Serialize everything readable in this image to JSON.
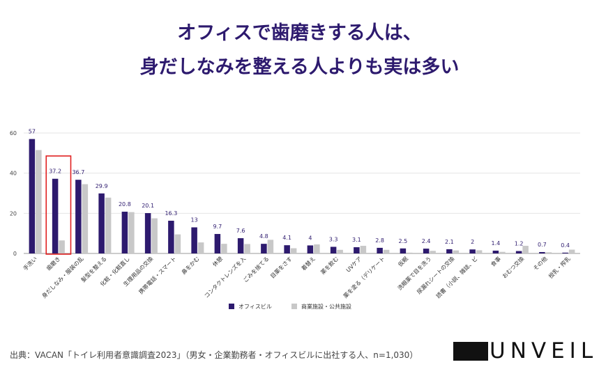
{
  "header": {
    "title_line1": "オフィスで歯磨きする人は、",
    "title_line2": "身だしなみを整える人よりも実は多い"
  },
  "footer": {
    "source": "出典：VACAN「トイレ利用者意識調査2023」（男女・企業勤務者・オフィスビルに出社する人、n=1,030）",
    "logo_prefix": "UN",
    "logo_suffix": "VEIL"
  },
  "colors": {
    "office": "#2d1a6e",
    "commercial": "#c8c8c8",
    "highlight": "#e02020",
    "label": "#2d1a6e"
  },
  "chart_data": {
    "type": "bar",
    "title": "オフィスで歯磨きする人は、身だしなみを整える人よりも実は多い",
    "xlabel": "",
    "ylabel": "",
    "ylim": [
      0,
      60
    ],
    "yticks": [
      0,
      20,
      40,
      60
    ],
    "grid": true,
    "legend": "bottom-center",
    "highlight_category": "歯磨き",
    "categories": [
      "手洗い",
      "歯磨き",
      "身だしなみ・服装の乱",
      "髪型を整える",
      "化粧・化粧直し",
      "生理用品の交換",
      "携帯電話・スマート",
      "鼻をかむ",
      "休憩",
      "コンタクトレンズを入",
      "ごみを捨てる",
      "目薬をさす",
      "着替え",
      "薬を飲む",
      "UVケア",
      "薬を塗る（デリケート",
      "仮眠",
      "洗眼薬で目を洗う",
      "尿漏れシートの交換",
      "読書（小説、雑誌、ビ",
      "食事",
      "おむつ交換",
      "その他",
      "授乳・搾乳"
    ],
    "series": [
      {
        "name": "オフィスビル",
        "values": [
          57,
          37.2,
          36.7,
          29.9,
          20.8,
          20.1,
          16.3,
          13,
          9.7,
          7.6,
          4.8,
          4.1,
          4,
          3.3,
          3.1,
          2.8,
          2.5,
          2.4,
          2.1,
          2,
          1.4,
          1.2,
          0.7,
          0.4
        ]
      },
      {
        "name": "商業施設・公共施設",
        "values": [
          51.5,
          6.5,
          34.5,
          27.8,
          20.6,
          17.5,
          9.5,
          5.5,
          4.8,
          4.7,
          6.8,
          2.6,
          4.5,
          1.8,
          3.8,
          1.8,
          0.4,
          1.3,
          1.5,
          1.6,
          0.8,
          3.8,
          0.6,
          1.9
        ]
      }
    ]
  }
}
